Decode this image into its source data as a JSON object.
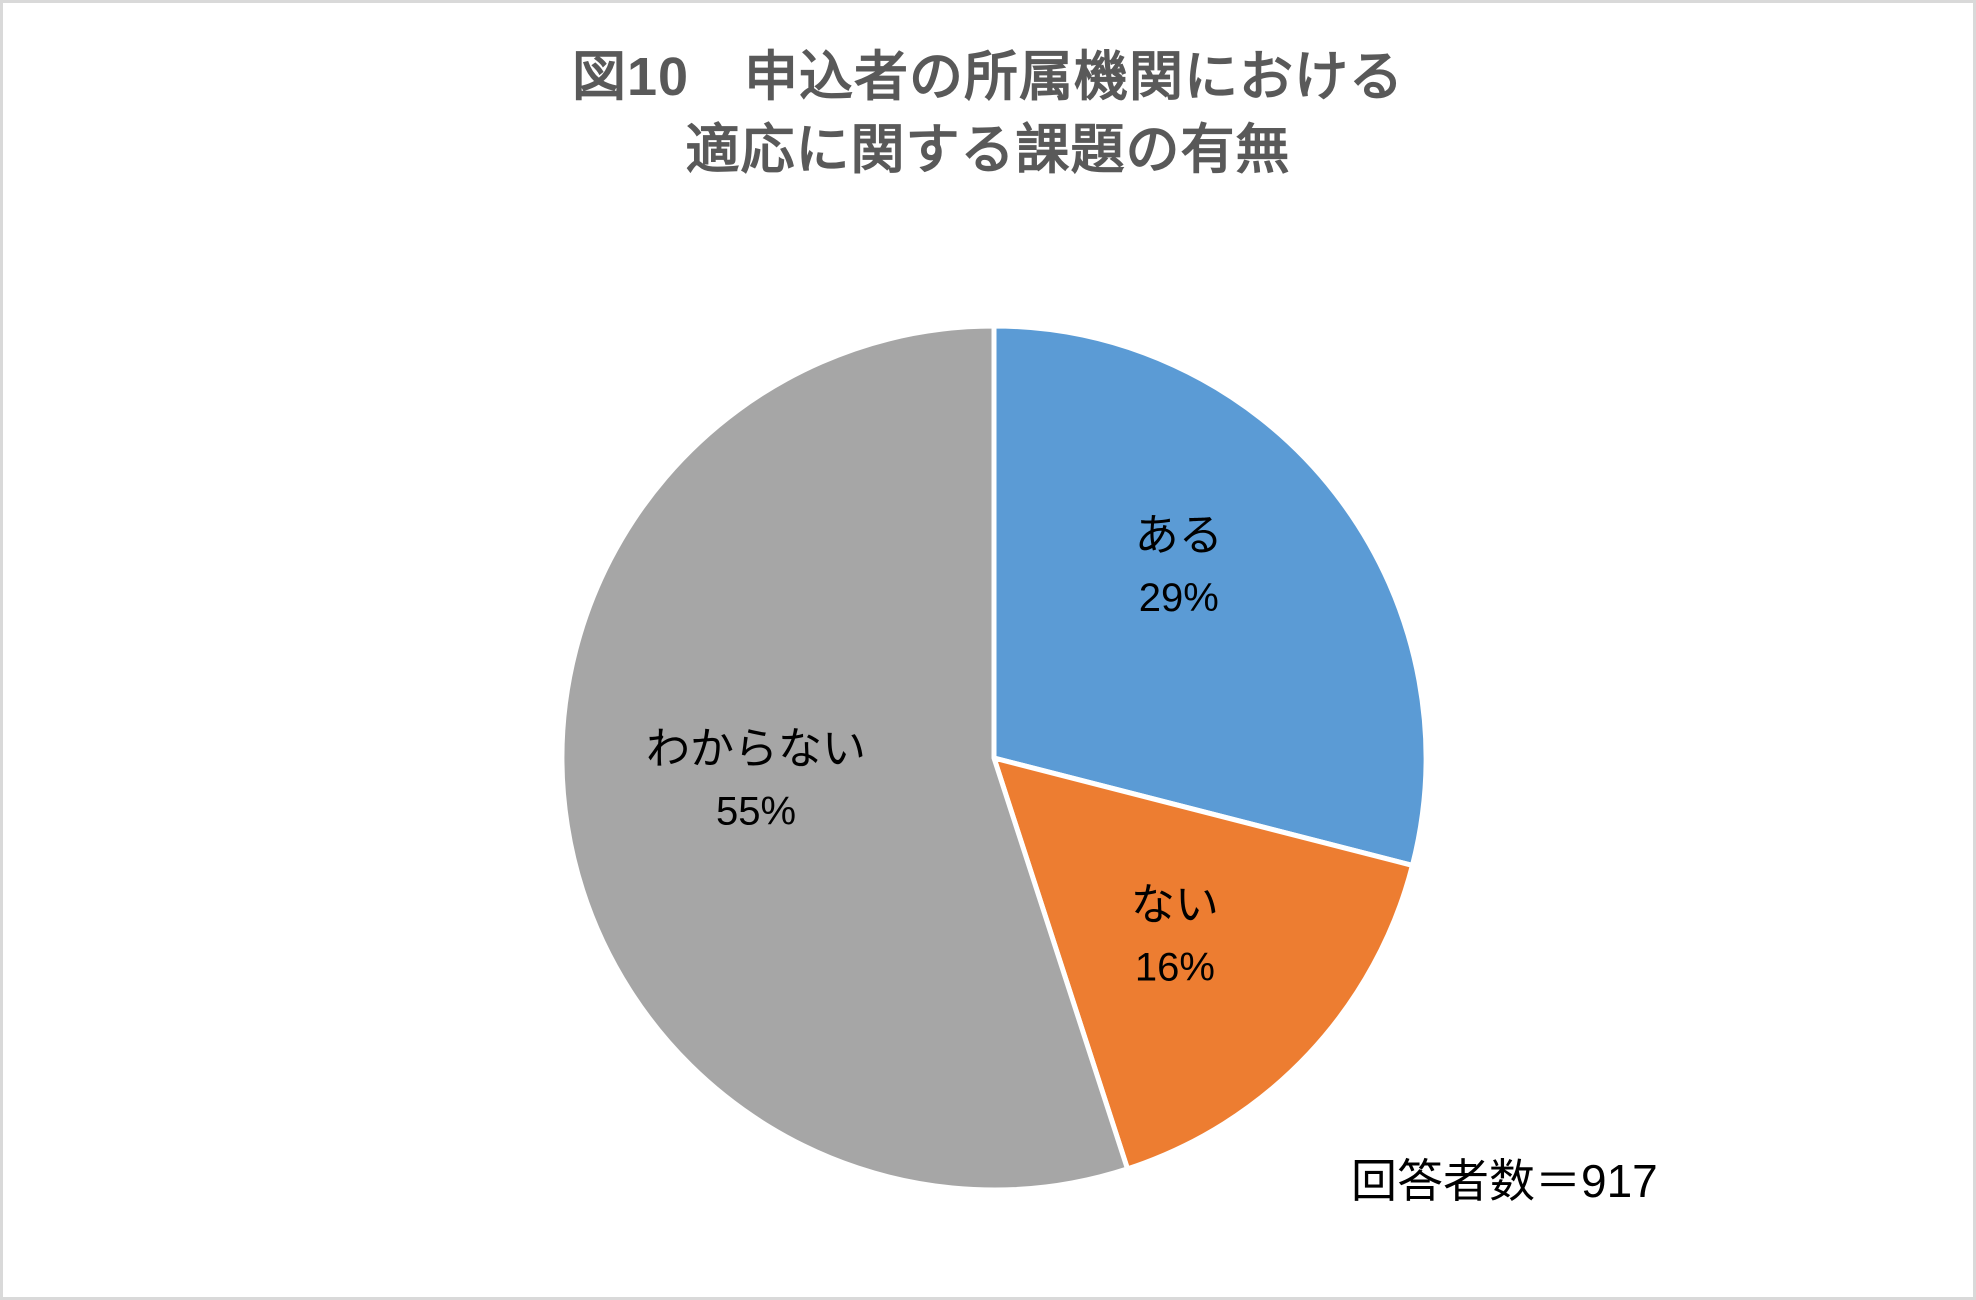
{
  "title": {
    "line1": "図10　申込者の所属機関における",
    "line2": "適応に関する課題の有無",
    "color": "#595959"
  },
  "note": {
    "text": "回答者数＝917"
  },
  "chart_data": {
    "type": "pie",
    "title": "図10 申込者の所属機関における適応に関する課題の有無",
    "slices": [
      {
        "label": "ある",
        "value": 29,
        "percent_label": "29%",
        "color": "#5B9BD5"
      },
      {
        "label": "ない",
        "value": 16,
        "percent_label": "16%",
        "color": "#ED7D31"
      },
      {
        "label": "わからない",
        "value": 55,
        "percent_label": "55%",
        "color": "#A6A6A6"
      }
    ],
    "start_angle_deg": 0,
    "direction": "clockwise",
    "slice_border_color": "#FFFFFF",
    "label_color": "#000000",
    "legend": "none",
    "respondents": 917
  }
}
